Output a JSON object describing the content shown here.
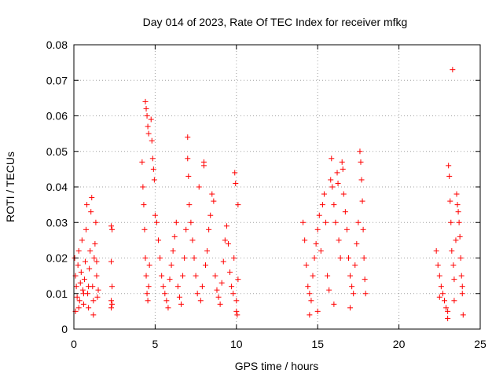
{
  "chart_data": {
    "type": "scatter",
    "title": "Day 014 of 2023, Rate Of TEC Index for receiver mfkg",
    "xlabel": "GPS time / hours",
    "ylabel": "ROTI / TECUs",
    "xlim": [
      0,
      25
    ],
    "ylim": [
      0,
      0.08
    ],
    "xticks": [
      "0",
      "5",
      "10",
      "15",
      "20",
      "25"
    ],
    "yticks": [
      "0",
      "0.01",
      "0.02",
      "0.03",
      "0.04",
      "0.05",
      "0.06",
      "0.07",
      "0.08"
    ],
    "grid": true,
    "marker": "+",
    "color": "#ff0000",
    "series": [
      {
        "points": [
          [
            0.05,
            0.02
          ],
          [
            0.1,
            0.015
          ],
          [
            0.15,
            0.012
          ],
          [
            0.2,
            0.009
          ],
          [
            0.25,
            0.018
          ],
          [
            0.3,
            0.022
          ],
          [
            0.35,
            0.008
          ],
          [
            0.4,
            0.013
          ],
          [
            0.45,
            0.016
          ],
          [
            0.5,
            0.025
          ],
          [
            0.55,
            0.011
          ],
          [
            0.6,
            0.007
          ],
          [
            0.65,
            0.014
          ],
          [
            0.7,
            0.019
          ],
          [
            0.75,
            0.028
          ],
          [
            0.8,
            0.035
          ],
          [
            0.85,
            0.01
          ],
          [
            0.9,
            0.006
          ],
          [
            0.95,
            0.017
          ],
          [
            1.0,
            0.022
          ],
          [
            1.05,
            0.033
          ],
          [
            1.1,
            0.037
          ],
          [
            1.15,
            0.012
          ],
          [
            1.2,
            0.008
          ],
          [
            1.25,
            0.02
          ],
          [
            1.3,
            0.024
          ],
          [
            1.35,
            0.03
          ],
          [
            1.4,
            0.015
          ],
          [
            1.45,
            0.009
          ],
          [
            1.5,
            0.011
          ],
          [
            0.1,
            0.005
          ],
          [
            0.3,
            0.006
          ],
          [
            0.6,
            0.01
          ],
          [
            0.9,
            0.012
          ],
          [
            1.2,
            0.004
          ],
          [
            1.4,
            0.019
          ],
          [
            2.3,
            0.029
          ],
          [
            2.35,
            0.028
          ],
          [
            2.3,
            0.019
          ],
          [
            2.35,
            0.012
          ],
          [
            2.3,
            0.008
          ],
          [
            2.35,
            0.007
          ],
          [
            2.3,
            0.006
          ],
          [
            4.2,
            0.047
          ],
          [
            4.25,
            0.04
          ],
          [
            4.3,
            0.035
          ],
          [
            4.35,
            0.028
          ],
          [
            4.4,
            0.02
          ],
          [
            4.45,
            0.015
          ],
          [
            4.5,
            0.01
          ],
          [
            4.55,
            0.008
          ],
          [
            4.6,
            0.012
          ],
          [
            4.65,
            0.018
          ],
          [
            4.4,
            0.064
          ],
          [
            4.45,
            0.062
          ],
          [
            4.5,
            0.06
          ],
          [
            4.55,
            0.057
          ],
          [
            4.6,
            0.055
          ],
          [
            4.75,
            0.059
          ],
          [
            4.8,
            0.053
          ],
          [
            4.85,
            0.048
          ],
          [
            4.9,
            0.045
          ],
          [
            4.95,
            0.042
          ],
          [
            5.0,
            0.032
          ],
          [
            5.1,
            0.03
          ],
          [
            5.2,
            0.025
          ],
          [
            5.3,
            0.02
          ],
          [
            5.4,
            0.015
          ],
          [
            5.5,
            0.012
          ],
          [
            5.6,
            0.01
          ],
          [
            5.7,
            0.008
          ],
          [
            5.8,
            0.006
          ],
          [
            5.9,
            0.014
          ],
          [
            6.0,
            0.018
          ],
          [
            6.1,
            0.022
          ],
          [
            6.2,
            0.026
          ],
          [
            6.3,
            0.03
          ],
          [
            6.4,
            0.012
          ],
          [
            6.5,
            0.009
          ],
          [
            6.6,
            0.007
          ],
          [
            6.7,
            0.015
          ],
          [
            6.8,
            0.02
          ],
          [
            6.9,
            0.028
          ],
          [
            7.0,
            0.054
          ],
          [
            7.0,
            0.048
          ],
          [
            7.05,
            0.043
          ],
          [
            7.1,
            0.035
          ],
          [
            7.2,
            0.03
          ],
          [
            7.3,
            0.025
          ],
          [
            7.4,
            0.02
          ],
          [
            7.5,
            0.015
          ],
          [
            7.6,
            0.01
          ],
          [
            7.7,
            0.04
          ],
          [
            7.8,
            0.008
          ],
          [
            7.9,
            0.012
          ],
          [
            8.0,
            0.047
          ],
          [
            8.0,
            0.046
          ],
          [
            8.1,
            0.018
          ],
          [
            8.2,
            0.022
          ],
          [
            8.3,
            0.028
          ],
          [
            8.4,
            0.032
          ],
          [
            8.5,
            0.038
          ],
          [
            8.6,
            0.036
          ],
          [
            8.7,
            0.015
          ],
          [
            8.8,
            0.011
          ],
          [
            8.9,
            0.009
          ],
          [
            9.0,
            0.007
          ],
          [
            9.1,
            0.013
          ],
          [
            9.2,
            0.019
          ],
          [
            9.3,
            0.025
          ],
          [
            9.4,
            0.029
          ],
          [
            9.5,
            0.024
          ],
          [
            9.6,
            0.016
          ],
          [
            9.7,
            0.012
          ],
          [
            9.8,
            0.01
          ],
          [
            9.9,
            0.044
          ],
          [
            9.95,
            0.041
          ],
          [
            10.0,
            0.008
          ],
          [
            10.0,
            0.005
          ],
          [
            10.05,
            0.004
          ],
          [
            10.1,
            0.035
          ],
          [
            10.1,
            0.014
          ],
          [
            9.85,
            0.02
          ],
          [
            14.1,
            0.03
          ],
          [
            14.2,
            0.025
          ],
          [
            14.3,
            0.018
          ],
          [
            14.4,
            0.012
          ],
          [
            14.5,
            0.01
          ],
          [
            14.6,
            0.008
          ],
          [
            14.7,
            0.015
          ],
          [
            14.8,
            0.02
          ],
          [
            14.9,
            0.024
          ],
          [
            15.0,
            0.028
          ],
          [
            15.1,
            0.032
          ],
          [
            15.2,
            0.022
          ],
          [
            15.3,
            0.035
          ],
          [
            15.4,
            0.038
          ],
          [
            15.5,
            0.03
          ],
          [
            15.6,
            0.015
          ],
          [
            15.7,
            0.011
          ],
          [
            15.8,
            0.042
          ],
          [
            15.85,
            0.048
          ],
          [
            15.9,
            0.04
          ],
          [
            16.0,
            0.035
          ],
          [
            16.1,
            0.03
          ],
          [
            16.2,
            0.044
          ],
          [
            16.25,
            0.041
          ],
          [
            16.3,
            0.025
          ],
          [
            16.4,
            0.02
          ],
          [
            16.5,
            0.047
          ],
          [
            16.55,
            0.045
          ],
          [
            16.6,
            0.038
          ],
          [
            16.7,
            0.033
          ],
          [
            16.8,
            0.028
          ],
          [
            16.9,
            0.02
          ],
          [
            17.0,
            0.015
          ],
          [
            17.1,
            0.012
          ],
          [
            17.2,
            0.01
          ],
          [
            17.3,
            0.018
          ],
          [
            17.4,
            0.024
          ],
          [
            17.5,
            0.03
          ],
          [
            17.6,
            0.05
          ],
          [
            17.65,
            0.047
          ],
          [
            17.7,
            0.042
          ],
          [
            17.75,
            0.036
          ],
          [
            17.8,
            0.028
          ],
          [
            17.85,
            0.02
          ],
          [
            17.9,
            0.014
          ],
          [
            17.95,
            0.01
          ],
          [
            15.0,
            0.005
          ],
          [
            16.0,
            0.007
          ],
          [
            17.0,
            0.006
          ],
          [
            14.5,
            0.004
          ],
          [
            22.3,
            0.022
          ],
          [
            22.4,
            0.018
          ],
          [
            22.5,
            0.015
          ],
          [
            22.6,
            0.012
          ],
          [
            22.7,
            0.01
          ],
          [
            22.8,
            0.008
          ],
          [
            22.9,
            0.006
          ],
          [
            23.0,
            0.005
          ],
          [
            23.05,
            0.046
          ],
          [
            23.1,
            0.043
          ],
          [
            23.15,
            0.036
          ],
          [
            23.2,
            0.03
          ],
          [
            23.25,
            0.022
          ],
          [
            23.3,
            0.073
          ],
          [
            23.35,
            0.018
          ],
          [
            23.4,
            0.014
          ],
          [
            23.5,
            0.025
          ],
          [
            23.55,
            0.038
          ],
          [
            23.6,
            0.035
          ],
          [
            23.65,
            0.033
          ],
          [
            23.7,
            0.03
          ],
          [
            23.75,
            0.026
          ],
          [
            23.8,
            0.02
          ],
          [
            23.85,
            0.015
          ],
          [
            23.9,
            0.01
          ],
          [
            23.95,
            0.004
          ],
          [
            23.0,
            0.003
          ],
          [
            22.5,
            0.009
          ],
          [
            23.4,
            0.008
          ],
          [
            23.9,
            0.012
          ]
        ]
      }
    ]
  }
}
